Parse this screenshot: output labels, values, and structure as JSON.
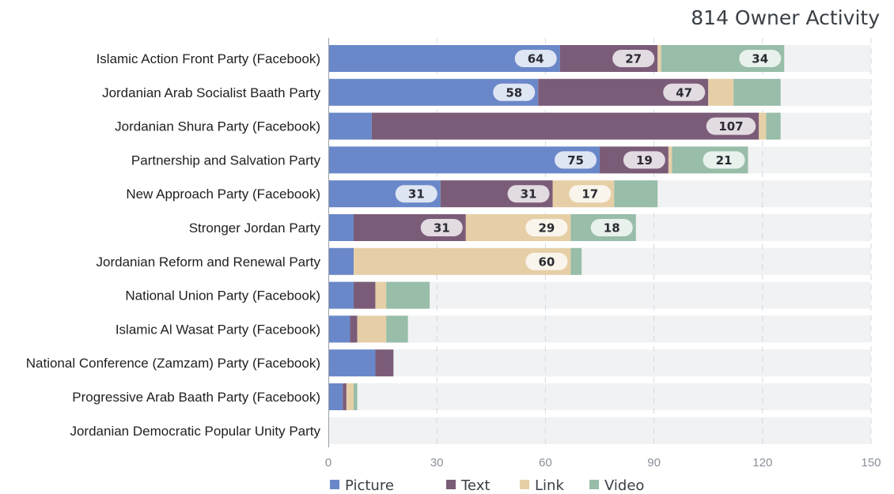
{
  "chart_data": {
    "type": "bar",
    "orientation": "horizontal",
    "stacked": true,
    "title": "814 Owner Activity",
    "categories": [
      "Islamic Action Front Party (Facebook)",
      "Jordanian Arab Socialist Baath Party",
      "Jordanian Shura Party (Facebook)",
      "Partnership and Salvation Party",
      "New Approach Party (Facebook)",
      "Stronger Jordan Party",
      "Jordanian Reform and Renewal Party",
      "National Union Party (Facebook)",
      "Islamic Al Wasat Party (Facebook)",
      "National Conference (Zamzam) Party (Facebook)",
      "Progressive Arab Baath Party (Facebook)",
      "Jordanian Democratic Popular Unity Party"
    ],
    "series": [
      {
        "name": "Picture",
        "color": "#6a88c9",
        "values": [
          64,
          58,
          12,
          75,
          31,
          7,
          7,
          7,
          6,
          13,
          4,
          0
        ]
      },
      {
        "name": "Text",
        "color": "#7b5c78",
        "values": [
          27,
          47,
          107,
          19,
          31,
          31,
          0,
          6,
          2,
          5,
          1,
          0
        ]
      },
      {
        "name": "Link",
        "color": "#e6cfa7",
        "values": [
          1,
          7,
          2,
          1,
          17,
          29,
          60,
          3,
          8,
          0,
          2,
          0
        ]
      },
      {
        "name": "Video",
        "color": "#98bda9",
        "values": [
          34,
          13,
          4,
          21,
          12,
          18,
          3,
          12,
          6,
          0,
          1,
          0
        ]
      }
    ],
    "labeled_min_value": 15,
    "xlim": [
      0,
      150
    ],
    "xticks": [
      0,
      30,
      60,
      90,
      120,
      150
    ],
    "track_color": "#f1f2f4",
    "grid": true,
    "legend_position": "bottom"
  }
}
